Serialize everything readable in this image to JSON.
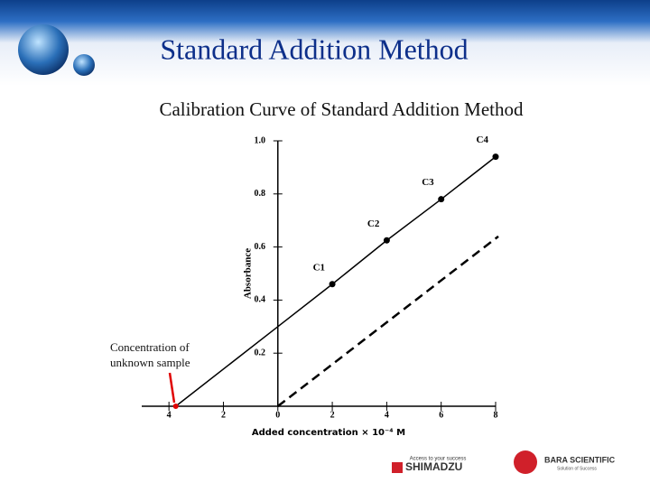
{
  "slide_title": "Standard Addition Method",
  "logos": {
    "shimadzu_tagline": "Access to your success",
    "shimadzu": "SHIMADZU",
    "bara": "BARA SCIENTIFIC",
    "bara_tagline": "Solution of Success"
  },
  "chart_data": {
    "type": "line",
    "title": "Calibration Curve of Standard Addition Method",
    "x_label": "Added concentration × 10⁻⁴ M",
    "y_label": "Absorbance",
    "annotation": [
      "Concentration of",
      "unknown sample"
    ],
    "xlim": [
      -5,
      8
    ],
    "xticks": [
      {
        "value": -4,
        "label": "4"
      },
      {
        "value": -2,
        "label": "2"
      },
      0,
      2,
      4,
      6,
      8
    ],
    "ylim": [
      0,
      1
    ],
    "yticks": [
      0.2,
      0.4,
      0.6,
      0.8,
      {
        "value": 1,
        "label": "1.0"
      }
    ],
    "series": [
      {
        "color": "#000000",
        "style": "solid",
        "x": [
          -3.75,
          0,
          2,
          4,
          6,
          8
        ],
        "values": [
          0,
          0.3,
          0.46,
          0.625,
          0.78,
          0.94
        ]
      },
      {
        "color": "#000000",
        "style": "dashed",
        "x": [
          0,
          8.1
        ],
        "values": [
          0,
          0.64
        ]
      }
    ],
    "points": {
      "x": [
        2,
        4,
        6,
        8
      ],
      "values": [
        0.46,
        0.625,
        0.78,
        0.94
      ],
      "labels": [
        "C1",
        "C2",
        "C3",
        "C4"
      ],
      "color": "#000000"
    },
    "unknown_color": "#e00000"
  }
}
